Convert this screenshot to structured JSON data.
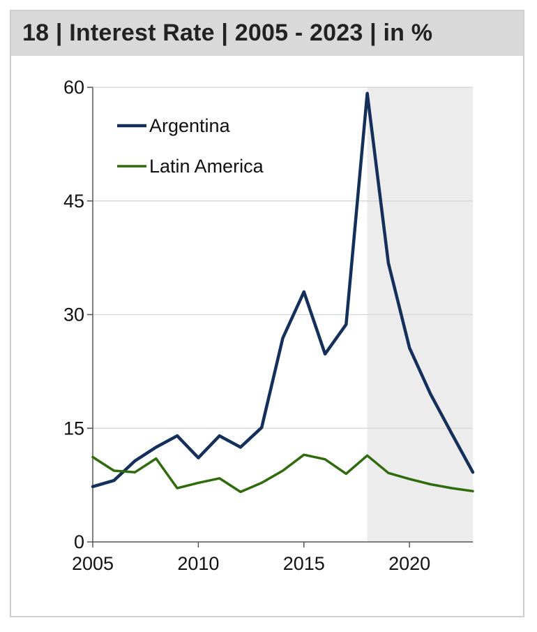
{
  "header": {
    "title": "18 | Interest Rate | 2005 - 2023 | in %"
  },
  "colors": {
    "argentina": "#14305a",
    "latin_america": "#2f6a0d",
    "forecast_shade": "#ececec",
    "grid": "#d9d9d9",
    "axis": "#555555"
  },
  "chart_data": {
    "type": "line",
    "title": "18 | Interest Rate | 2005 - 2023 | in %",
    "xlabel": "",
    "ylabel": "",
    "xlim": [
      2005,
      2023
    ],
    "ylim": [
      0,
      60
    ],
    "xticks": [
      2005,
      2010,
      2015,
      2020
    ],
    "yticks": [
      0,
      15,
      30,
      45,
      60
    ],
    "grid": true,
    "legend_position": "top-left",
    "shaded_region": {
      "x_start": 2018,
      "x_end": 2023
    },
    "x": [
      2005,
      2006,
      2007,
      2008,
      2009,
      2010,
      2011,
      2012,
      2013,
      2014,
      2015,
      2016,
      2017,
      2018,
      2019,
      2020,
      2021,
      2022,
      2023
    ],
    "series": [
      {
        "name": "Argentina",
        "color": "#14305a",
        "values": [
          7.3,
          8.1,
          10.7,
          12.5,
          14.0,
          11.1,
          14.0,
          12.5,
          15.1,
          26.9,
          33.0,
          24.8,
          28.7,
          59.2,
          36.8,
          25.6,
          19.5,
          14.3,
          9.2
        ]
      },
      {
        "name": "Latin America",
        "color": "#2f6a0d",
        "values": [
          11.2,
          9.4,
          9.2,
          11.0,
          7.1,
          7.8,
          8.4,
          6.6,
          7.8,
          9.4,
          11.5,
          10.9,
          9.0,
          11.4,
          9.1,
          8.3,
          7.6,
          7.1,
          6.7
        ]
      }
    ]
  }
}
